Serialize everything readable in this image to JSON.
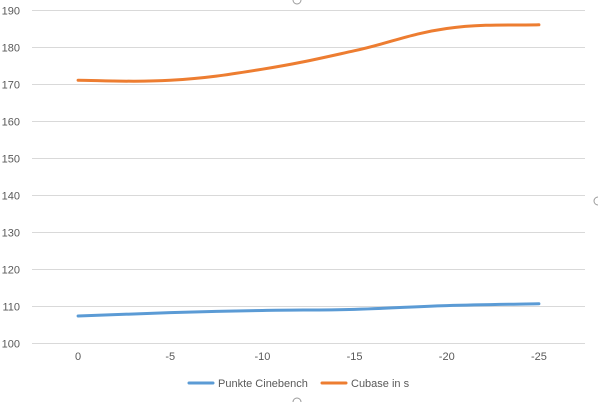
{
  "chart_data": {
    "type": "line",
    "title": "",
    "xlabel": "",
    "ylabel": "",
    "categories": [
      "0",
      "-5",
      "-10",
      "-15",
      "-20",
      "-25"
    ],
    "ylim": [
      100,
      190
    ],
    "y_ticks": [
      100,
      110,
      120,
      130,
      140,
      150,
      160,
      170,
      180,
      190
    ],
    "grid": true,
    "legend_position": "bottom",
    "series": [
      {
        "name": "Punkte Cinebench",
        "color": "#5b9bd5",
        "values": [
          107.3,
          108.2,
          108.8,
          109.1,
          110.1,
          110.6
        ]
      },
      {
        "name": "Cubase in s",
        "color": "#ed7d31",
        "values": [
          171,
          171,
          174,
          179,
          185,
          186
        ]
      }
    ]
  }
}
